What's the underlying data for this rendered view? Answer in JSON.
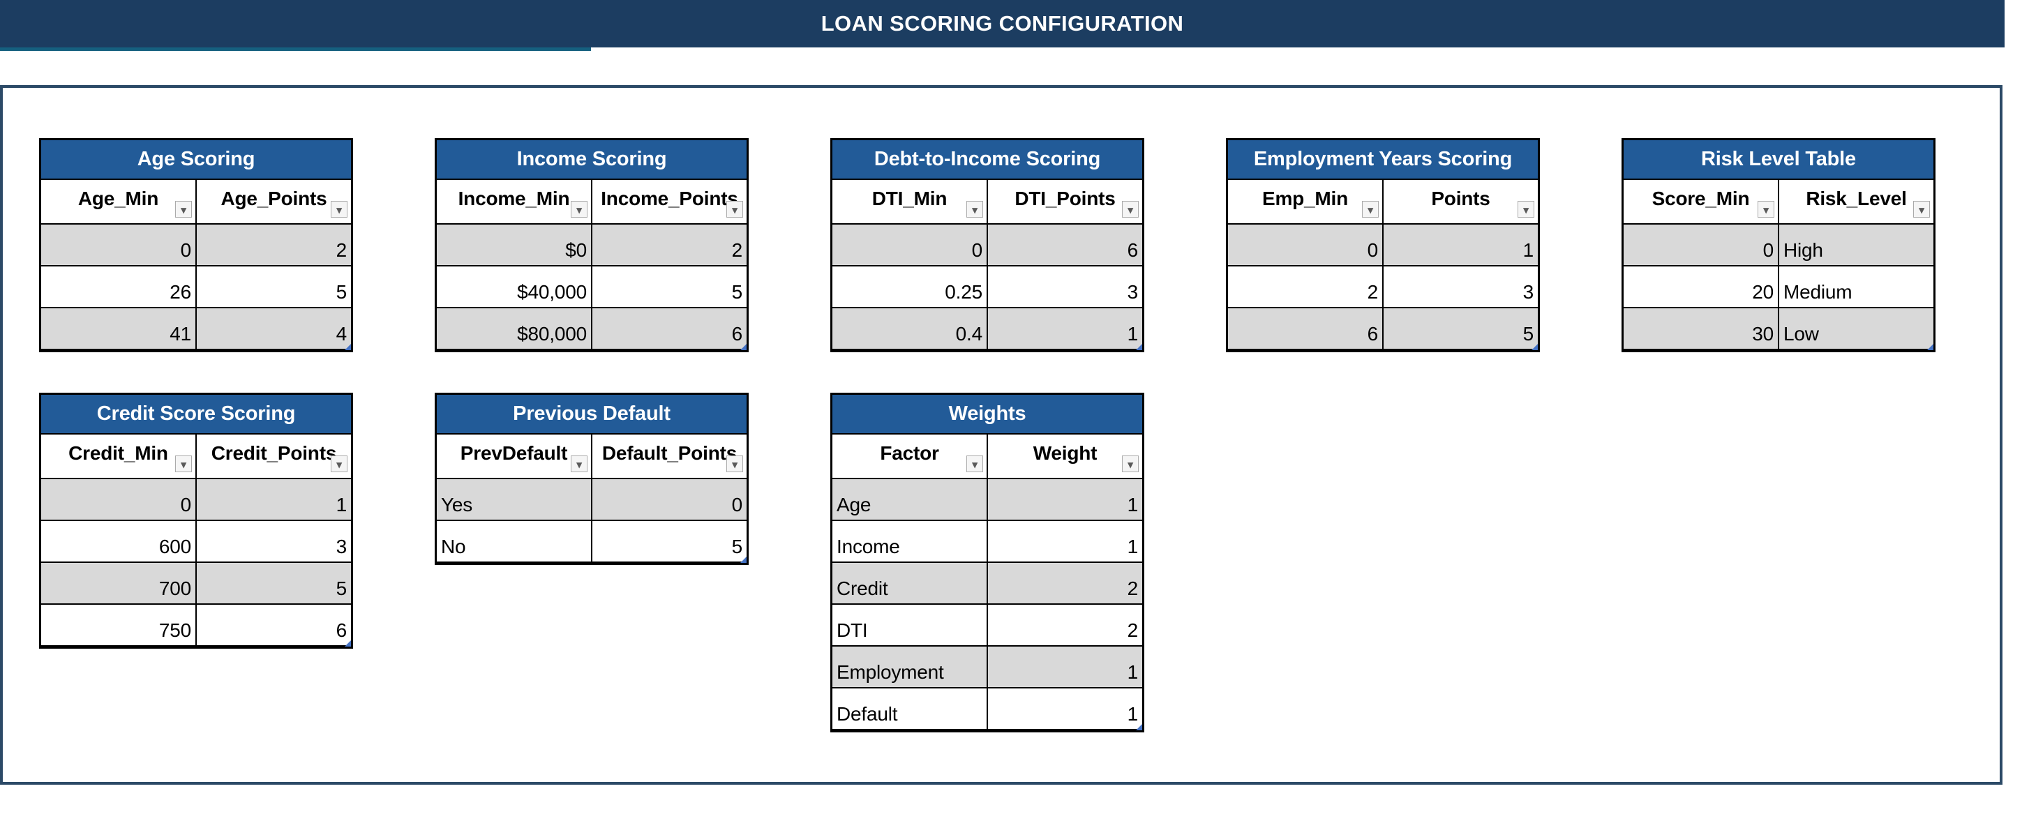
{
  "header": {
    "title": "LOAN SCORING CONFIGURATION"
  },
  "colors": {
    "header_bar": "#1C3D61",
    "accent_strip": "#15607F",
    "panel_border": "#2C4A67",
    "table_title_bg": "#225B98",
    "banded_row": "#D9D9D9",
    "table_border": "#000000",
    "resize_handle": "#4472C4",
    "filter_button_bg": "#F5F5F5"
  },
  "icons": {
    "filter_dropdown": "▾"
  },
  "tables": [
    {
      "id": "age-scoring",
      "title": "Age Scoring",
      "columns": [
        "Age_Min",
        "Age_Points"
      ],
      "rows": [
        [
          "0",
          "2"
        ],
        [
          "26",
          "5"
        ],
        [
          "41",
          "4"
        ]
      ]
    },
    {
      "id": "income-scoring",
      "title": "Income Scoring",
      "columns": [
        "Income_Min",
        "Income_Points"
      ],
      "rows": [
        [
          "$0",
          "2"
        ],
        [
          "$40,000",
          "5"
        ],
        [
          "$80,000",
          "6"
        ]
      ]
    },
    {
      "id": "dti-scoring",
      "title": "Debt-to-Income Scoring",
      "columns": [
        "DTI_Min",
        "DTI_Points"
      ],
      "rows": [
        [
          "0",
          "6"
        ],
        [
          "0.25",
          "3"
        ],
        [
          "0.4",
          "1"
        ]
      ]
    },
    {
      "id": "employment-years-scoring",
      "title": "Employment Years Scoring",
      "columns": [
        "Emp_Min",
        "Points"
      ],
      "rows": [
        [
          "0",
          "1"
        ],
        [
          "2",
          "3"
        ],
        [
          "6",
          "5"
        ]
      ]
    },
    {
      "id": "risk-level-table",
      "title": "Risk Level Table",
      "columns": [
        "Score_Min",
        "Risk_Level"
      ],
      "rows": [
        [
          "0",
          "High"
        ],
        [
          "20",
          "Medium"
        ],
        [
          "30",
          "Low"
        ]
      ]
    },
    {
      "id": "credit-score-scoring",
      "title": "Credit Score Scoring",
      "columns": [
        "Credit_Min",
        "Credit_Points"
      ],
      "rows": [
        [
          "0",
          "1"
        ],
        [
          "600",
          "3"
        ],
        [
          "700",
          "5"
        ],
        [
          "750",
          "6"
        ]
      ]
    },
    {
      "id": "previous-default",
      "title": "Previous Default",
      "columns": [
        "PrevDefault",
        "Default_Points"
      ],
      "rows": [
        [
          "Yes",
          "0"
        ],
        [
          "No",
          "5"
        ]
      ]
    },
    {
      "id": "weights",
      "title": "Weights",
      "columns": [
        "Factor",
        "Weight"
      ],
      "rows": [
        [
          "Age",
          "1"
        ],
        [
          "Income",
          "1"
        ],
        [
          "Credit",
          "2"
        ],
        [
          "DTI",
          "2"
        ],
        [
          "Employment",
          "1"
        ],
        [
          "Default",
          "1"
        ]
      ]
    }
  ]
}
